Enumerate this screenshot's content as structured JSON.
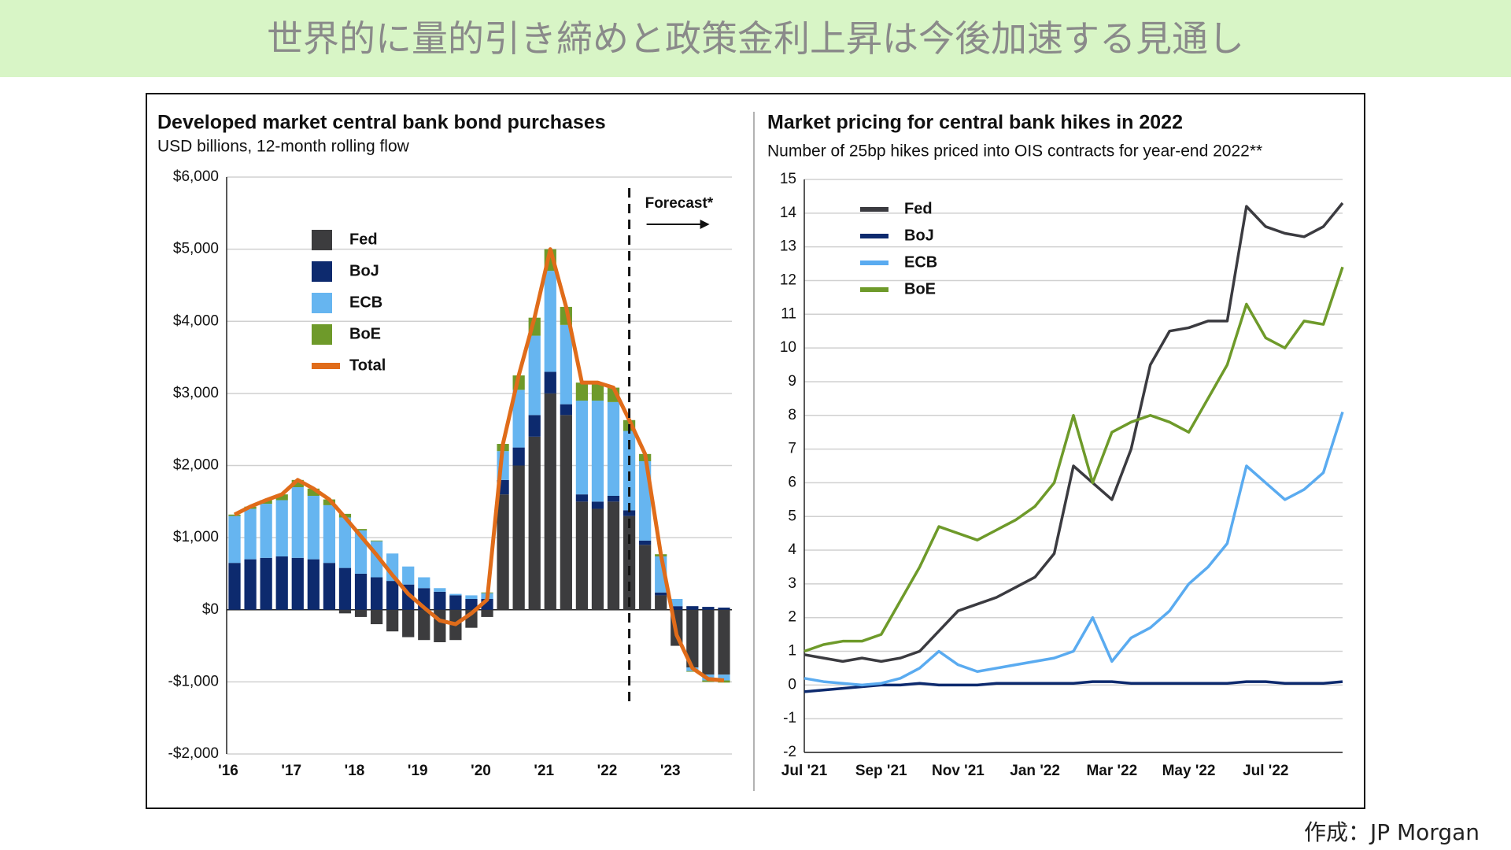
{
  "page": {
    "title": "世界的に量的引き締めと政策金利上昇は今後加速する見通し",
    "source": "作成：JP Morgan"
  },
  "chart_data": [
    {
      "type": "bar",
      "stacked": true,
      "title": "Developed market central bank bond purchases",
      "subtitle": "USD billions, 12-month rolling flow",
      "annotation": "Forecast*",
      "categories": [
        "'16",
        null,
        null,
        null,
        "'17",
        null,
        null,
        null,
        "'18",
        null,
        null,
        null,
        "'19",
        null,
        null,
        null,
        "'20",
        null,
        null,
        null,
        "'21",
        null,
        null,
        null,
        "'22",
        null,
        null,
        null,
        "'23",
        null,
        null,
        null
      ],
      "series": [
        {
          "name": "Fed",
          "color": "#3c3c3e",
          "values": [
            0,
            0,
            0,
            0,
            0,
            0,
            0,
            -50,
            -100,
            -200,
            -300,
            -380,
            -420,
            -450,
            -420,
            -250,
            -100,
            1600,
            2000,
            2400,
            3000,
            2700,
            1500,
            1400,
            1500,
            1300,
            900,
            200,
            -500,
            -800,
            -900,
            -900
          ]
        },
        {
          "name": "BoJ",
          "color": "#0d2a6e",
          "values": [
            650,
            700,
            720,
            740,
            720,
            700,
            650,
            580,
            500,
            450,
            400,
            350,
            300,
            250,
            200,
            150,
            150,
            200,
            250,
            300,
            300,
            150,
            100,
            100,
            80,
            80,
            60,
            40,
            50,
            50,
            40,
            30
          ]
        },
        {
          "name": "ECB",
          "color": "#66b5f0",
          "values": [
            650,
            700,
            750,
            780,
            980,
            880,
            800,
            700,
            600,
            500,
            380,
            250,
            150,
            50,
            20,
            50,
            80,
            400,
            800,
            1100,
            1400,
            1100,
            1300,
            1400,
            1300,
            1100,
            1100,
            500,
            100,
            -50,
            -80,
            -80
          ]
        },
        {
          "name": "BoE",
          "color": "#6e9a2a",
          "values": [
            20,
            30,
            50,
            80,
            100,
            100,
            80,
            50,
            20,
            10,
            0,
            0,
            0,
            0,
            0,
            0,
            10,
            100,
            200,
            250,
            300,
            250,
            250,
            250,
            200,
            150,
            100,
            30,
            0,
            -10,
            -20,
            -30
          ]
        },
        {
          "name": "Total",
          "color": "#e06c1a",
          "mark": "line",
          "values": [
            1320,
            1430,
            1520,
            1600,
            1800,
            1680,
            1530,
            1280,
            1020,
            760,
            480,
            220,
            30,
            -150,
            -200,
            -50,
            140,
            2300,
            3250,
            4050,
            5000,
            4200,
            3150,
            3150,
            3080,
            2630,
            2160,
            770,
            -350,
            -810,
            -960,
            -980
          ]
        }
      ],
      "ylim": [
        -2000,
        6000
      ],
      "yticks": [
        {
          "value": -2000,
          "label": "-$2,000"
        },
        {
          "value": -1000,
          "label": "-$1,000"
        },
        {
          "value": 0,
          "label": "$0"
        },
        {
          "value": 1000,
          "label": "$1,000"
        },
        {
          "value": 2000,
          "label": "$2,000"
        },
        {
          "value": 3000,
          "label": "$3,000"
        },
        {
          "value": 4000,
          "label": "$4,000"
        },
        {
          "value": 5000,
          "label": "$5,000"
        },
        {
          "value": 6000,
          "label": "$6,000"
        }
      ],
      "grid": true
    },
    {
      "type": "line",
      "title": "Market pricing for central bank hikes in 2022",
      "subtitle": "Number of 25bp hikes priced into OIS contracts for year-end 2022**",
      "categories": [
        "Jul '21",
        null,
        null,
        null,
        "Sep '21",
        null,
        null,
        null,
        "Nov '21",
        null,
        null,
        null,
        "Jan '22",
        null,
        null,
        null,
        "Mar '22",
        null,
        null,
        null,
        "May '22",
        null,
        null,
        null,
        "Jul '22",
        null,
        null,
        null,
        null
      ],
      "series": [
        {
          "name": "Fed",
          "color": "#3b3b40",
          "values": [
            0.9,
            0.8,
            0.7,
            0.8,
            0.7,
            0.8,
            1.0,
            1.6,
            2.2,
            2.4,
            2.6,
            2.9,
            3.2,
            3.9,
            6.5,
            6.0,
            5.5,
            7.0,
            9.5,
            10.5,
            10.6,
            10.8,
            10.8,
            14.2,
            13.6,
            13.4,
            13.3,
            13.6,
            14.3
          ]
        },
        {
          "name": "BoJ",
          "color": "#0d2a6e",
          "values": [
            -0.2,
            -0.15,
            -0.1,
            -0.05,
            0,
            0,
            0.05,
            0,
            0,
            0,
            0.05,
            0.05,
            0.05,
            0.05,
            0.05,
            0.1,
            0.1,
            0.05,
            0.05,
            0.05,
            0.05,
            0.05,
            0.05,
            0.1,
            0.1,
            0.05,
            0.05,
            0.05,
            0.1
          ]
        },
        {
          "name": "ECB",
          "color": "#5aabf0",
          "values": [
            0.2,
            0.1,
            0.05,
            0,
            0.05,
            0.2,
            0.5,
            1.0,
            0.6,
            0.4,
            0.5,
            0.6,
            0.7,
            0.8,
            1.0,
            2.0,
            0.7,
            1.4,
            1.7,
            2.2,
            3.0,
            3.5,
            4.2,
            6.5,
            6.0,
            5.5,
            5.8,
            6.3,
            8.1
          ]
        },
        {
          "name": "BoE",
          "color": "#6e9a2a",
          "values": [
            1.0,
            1.2,
            1.3,
            1.3,
            1.5,
            2.5,
            3.5,
            4.7,
            4.5,
            4.3,
            4.6,
            4.9,
            5.3,
            6.0,
            8.0,
            6.0,
            7.5,
            7.8,
            8.0,
            7.8,
            7.5,
            8.5,
            9.5,
            11.3,
            10.3,
            10.0,
            10.8,
            10.7,
            12.4
          ]
        }
      ],
      "ylim": [
        -2,
        15
      ],
      "yticks": [
        -2,
        -1,
        0,
        1,
        2,
        3,
        4,
        5,
        6,
        7,
        8,
        9,
        10,
        11,
        12,
        13,
        14,
        15
      ],
      "grid": true
    }
  ]
}
